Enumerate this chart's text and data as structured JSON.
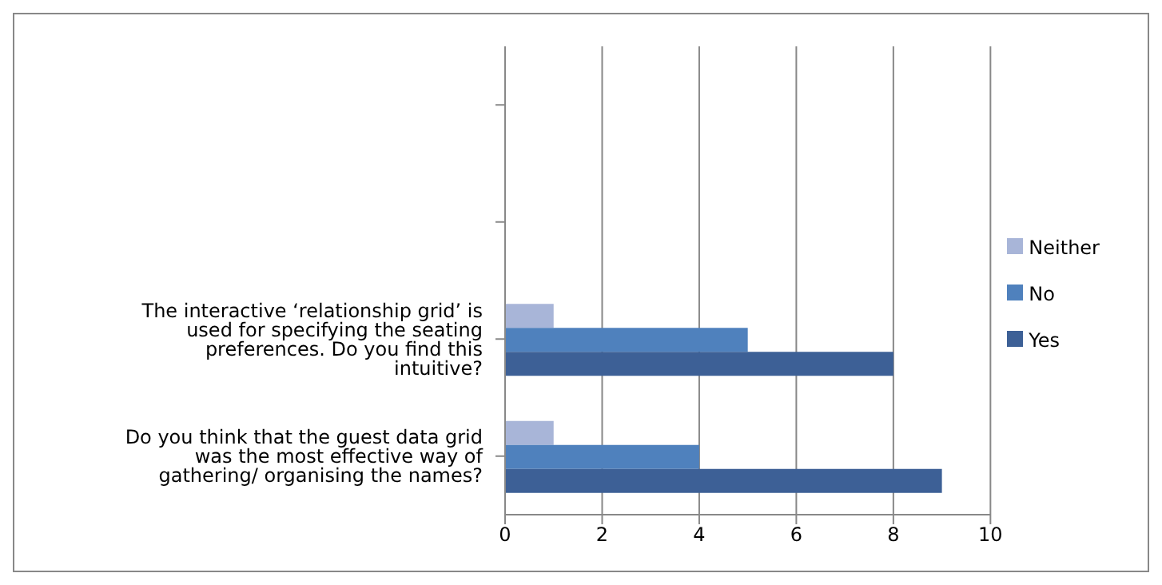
{
  "chart_data": {
    "type": "bar",
    "orientation": "horizontal",
    "categories": [
      null,
      null,
      "The interactive ‘relationship grid’ is used for specifying the seating preferences. Do you find this intuitive?",
      "Do you think that the guest data grid was the most effective way of gathering/ organising the names?"
    ],
    "series": [
      {
        "name": "Neither",
        "color": "#a8b5d8",
        "values": [
          null,
          null,
          1,
          1
        ]
      },
      {
        "name": "No",
        "color": "#4f81bd",
        "values": [
          null,
          null,
          5,
          4
        ]
      },
      {
        "name": "Yes",
        "color": "#3d6096",
        "values": [
          null,
          null,
          8,
          9
        ]
      }
    ],
    "xlim": [
      0,
      10
    ],
    "xticks": [
      0,
      2,
      4,
      6,
      8,
      10
    ],
    "grid": "x",
    "legend": "right"
  }
}
